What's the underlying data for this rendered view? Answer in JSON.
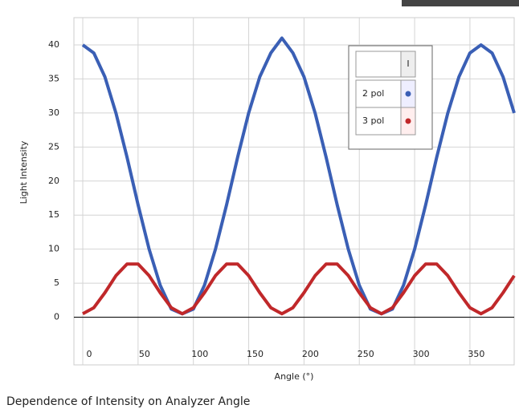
{
  "chart_data": {
    "type": "line",
    "caption": "Dependence of Intensity on Analyzer Angle",
    "x_label": "Angle (°)",
    "y_label": "Light Intensity",
    "legend_header": "I",
    "x": [
      0,
      10,
      20,
      30,
      40,
      50,
      60,
      70,
      80,
      90,
      100,
      110,
      120,
      130,
      140,
      150,
      160,
      170,
      180,
      190,
      200,
      210,
      220,
      230,
      240,
      250,
      260,
      270,
      280,
      290,
      300,
      310,
      320,
      330,
      340,
      350,
      360,
      370,
      380,
      390
    ],
    "series": [
      {
        "name": "2 pol",
        "color": "#3a5fb5",
        "values": [
          40,
          38.8,
          35.3,
          30,
          23.5,
          16.5,
          10,
          4.7,
          1.2,
          0.5,
          1.2,
          4.7,
          10,
          16.5,
          23.5,
          30,
          35.3,
          38.8,
          41,
          38.8,
          35.3,
          30,
          23.5,
          16.5,
          10,
          4.7,
          1.2,
          0.5,
          1.2,
          4.7,
          10,
          16.5,
          23.5,
          30,
          35.3,
          38.8,
          40,
          38.8,
          35.3,
          30
        ]
      },
      {
        "name": "3 pol",
        "color": "#c0282a",
        "values": [
          0.5,
          1.4,
          3.6,
          6.1,
          7.8,
          7.8,
          6.1,
          3.6,
          1.4,
          0.5,
          1.4,
          3.6,
          6.1,
          7.8,
          7.8,
          6.1,
          3.6,
          1.4,
          0.5,
          1.4,
          3.6,
          6.1,
          7.8,
          7.8,
          6.1,
          3.6,
          1.4,
          0.5,
          1.4,
          3.6,
          6.1,
          7.8,
          7.8,
          6.1,
          3.6,
          1.4,
          0.5,
          1.4,
          3.6,
          6.1
        ]
      }
    ],
    "xlim": [
      -8,
      390
    ],
    "xticks": [
      0,
      50,
      100,
      150,
      200,
      250,
      300,
      350
    ],
    "ylim": [
      -7,
      44
    ],
    "yticks": [
      0,
      5,
      10,
      15,
      20,
      25,
      30,
      35,
      40
    ],
    "grid": true
  }
}
